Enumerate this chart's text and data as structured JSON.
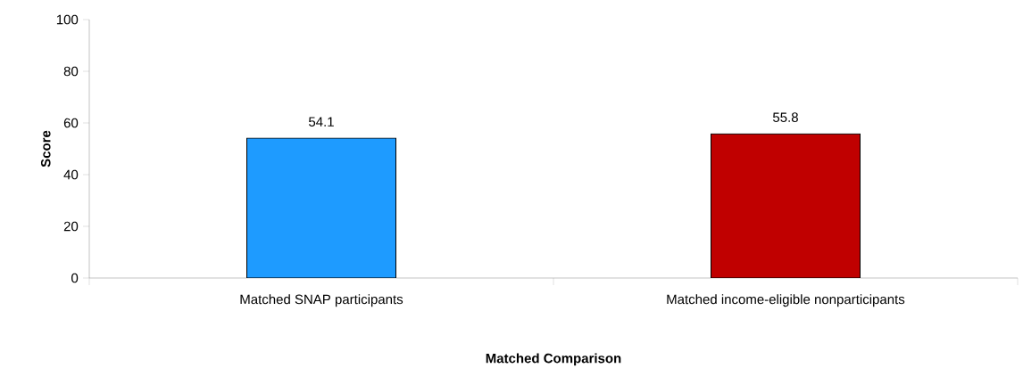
{
  "chart_data": {
    "type": "bar",
    "xlabel": "Matched Comparison",
    "ylabel": "Score",
    "categories": [
      "Matched SNAP participants",
      "Matched income-eligible nonparticipants"
    ],
    "values": [
      54.1,
      55.8
    ],
    "colors": [
      "#1e9bff",
      "#c00000"
    ],
    "ylim": [
      0,
      100
    ],
    "yticks": [
      0,
      20,
      40,
      60,
      80,
      100
    ],
    "grid": false,
    "data_labels": true
  }
}
